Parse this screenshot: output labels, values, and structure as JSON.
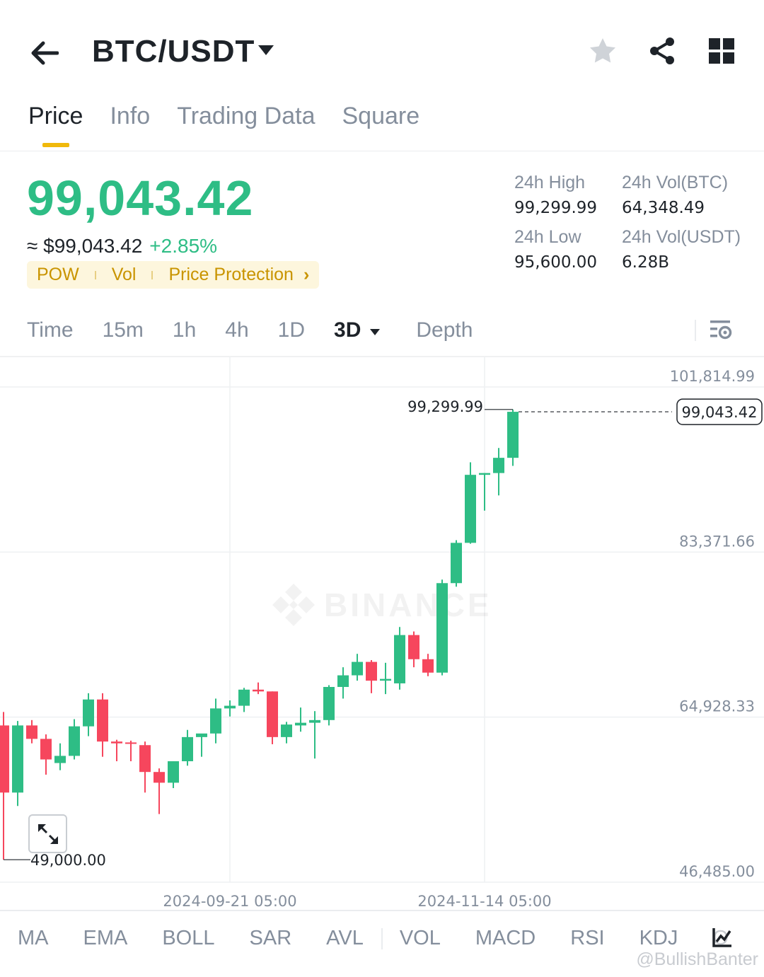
{
  "header": {
    "pair": "BTC/USDT",
    "icons": [
      "back-arrow-icon",
      "caret-down-icon",
      "star-icon",
      "share-icon",
      "grid-icon"
    ]
  },
  "tabs": [
    {
      "label": "Price",
      "active": true
    },
    {
      "label": "Info",
      "active": false
    },
    {
      "label": "Trading Data",
      "active": false
    },
    {
      "label": "Square",
      "active": false
    }
  ],
  "price": {
    "last": "99,043.42",
    "approx": "≈ $99,043.42",
    "change": "+2.85%",
    "color_up": "#2ebd85",
    "color_down": "#f6465d"
  },
  "tags": {
    "pow": "POW",
    "vol": "Vol",
    "protection": "Price Protection",
    "chevron": "›"
  },
  "stats": {
    "high_label": "24h High",
    "high_value": "99,299.99",
    "vol_btc_label": "24h Vol(BTC)",
    "vol_btc_value": "64,348.49",
    "low_label": "24h Low",
    "low_value": "95,600.00",
    "vol_usdt_label": "24h Vol(USDT)",
    "vol_usdt_value": "6.28B"
  },
  "intervals": {
    "items": [
      "Time",
      "15m",
      "1h",
      "4h",
      "1D"
    ],
    "selected": "3D",
    "depth": "Depth"
  },
  "chart_data": {
    "type": "candlestick",
    "y_ticks": [
      "101,814.99",
      "83,371.66",
      "64,928.33",
      "46,485.00"
    ],
    "ylim": [
      46485.0,
      101814.99
    ],
    "x_ticks": [
      "2024-09-21 05:00",
      "2024-11-14 05:00"
    ],
    "high_marker": "99,299.99",
    "low_marker": "49,000.00",
    "last_price_label": "99,043.42",
    "watermark": "BINANCE",
    "candles": [
      {
        "o": 64000,
        "h": 65500,
        "l": 49000,
        "c": 56500
      },
      {
        "o": 56500,
        "h": 64500,
        "l": 55000,
        "c": 64000
      },
      {
        "o": 64000,
        "h": 64600,
        "l": 62000,
        "c": 62500
      },
      {
        "o": 62500,
        "h": 63000,
        "l": 58500,
        "c": 60200
      },
      {
        "o": 59800,
        "h": 62000,
        "l": 59000,
        "c": 60600
      },
      {
        "o": 60600,
        "h": 64700,
        "l": 60200,
        "c": 63900
      },
      {
        "o": 63900,
        "h": 67600,
        "l": 62800,
        "c": 66900
      },
      {
        "o": 66900,
        "h": 67600,
        "l": 60500,
        "c": 62200
      },
      {
        "o": 62200,
        "h": 62400,
        "l": 60000,
        "c": 62000
      },
      {
        "o": 62100,
        "h": 62300,
        "l": 60000,
        "c": 62000
      },
      {
        "o": 61800,
        "h": 62200,
        "l": 56500,
        "c": 58800
      },
      {
        "o": 58800,
        "h": 59200,
        "l": 54100,
        "c": 57600
      },
      {
        "o": 57600,
        "h": 60000,
        "l": 57000,
        "c": 60000
      },
      {
        "o": 60000,
        "h": 63500,
        "l": 59500,
        "c": 62700
      },
      {
        "o": 62700,
        "h": 63000,
        "l": 60500,
        "c": 63100
      },
      {
        "o": 63100,
        "h": 67000,
        "l": 62000,
        "c": 65900
      },
      {
        "o": 65900,
        "h": 66800,
        "l": 65000,
        "c": 66200
      },
      {
        "o": 66200,
        "h": 68200,
        "l": 65500,
        "c": 68000
      },
      {
        "o": 68000,
        "h": 68800,
        "l": 67500,
        "c": 67800
      },
      {
        "o": 67800,
        "h": 67800,
        "l": 61900,
        "c": 62700
      },
      {
        "o": 62700,
        "h": 64400,
        "l": 62000,
        "c": 64100
      },
      {
        "o": 64000,
        "h": 66000,
        "l": 63300,
        "c": 64300
      },
      {
        "o": 64300,
        "h": 65600,
        "l": 60300,
        "c": 64600
      },
      {
        "o": 64600,
        "h": 68500,
        "l": 64000,
        "c": 68300
      },
      {
        "o": 68300,
        "h": 70500,
        "l": 67000,
        "c": 69600
      },
      {
        "o": 69600,
        "h": 72000,
        "l": 69000,
        "c": 71100
      },
      {
        "o": 71100,
        "h": 71300,
        "l": 67600,
        "c": 69000
      },
      {
        "o": 69000,
        "h": 71000,
        "l": 67500,
        "c": 69200
      },
      {
        "o": 68700,
        "h": 75000,
        "l": 68000,
        "c": 74100
      },
      {
        "o": 74100,
        "h": 74500,
        "l": 70500,
        "c": 71400
      },
      {
        "o": 71400,
        "h": 72000,
        "l": 69500,
        "c": 69900
      },
      {
        "o": 69900,
        "h": 80300,
        "l": 69600,
        "c": 79900
      },
      {
        "o": 79900,
        "h": 84700,
        "l": 79500,
        "c": 84400
      },
      {
        "o": 84400,
        "h": 93400,
        "l": 84300,
        "c": 92000
      },
      {
        "o": 92000,
        "h": 92200,
        "l": 88000,
        "c": 92200
      },
      {
        "o": 92200,
        "h": 95000,
        "l": 89700,
        "c": 93900
      },
      {
        "o": 93900,
        "h": 99299.99,
        "l": 93000,
        "c": 99043.42
      }
    ]
  },
  "indicators": [
    "MA",
    "EMA",
    "BOLL",
    "SAR",
    "AVL",
    "VOL",
    "MACD",
    "RSI",
    "KDJ",
    "O"
  ],
  "credit": "@BullishBanter"
}
